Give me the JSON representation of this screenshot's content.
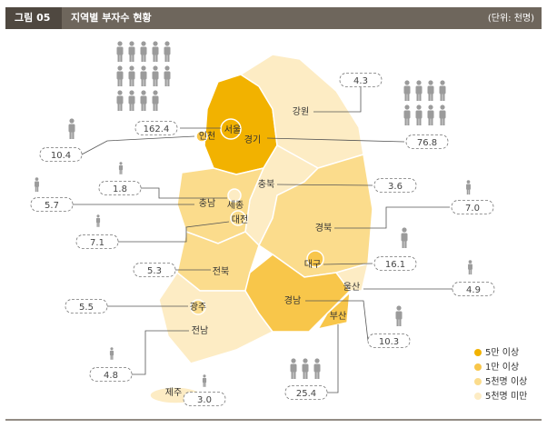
{
  "header": {
    "figure": "그림 05",
    "title": "지역별 부자수 현황",
    "unit": "(단위: 천명)"
  },
  "regions": [
    {
      "name": "서울",
      "value": "162.4",
      "color": "#f2b200"
    },
    {
      "name": "인천",
      "value": "10.4",
      "color": "#f8c64a"
    },
    {
      "name": "경기",
      "value": "76.8",
      "color": "#f2b200"
    },
    {
      "name": "강원",
      "value": "4.3",
      "color": "#fdecc4"
    },
    {
      "name": "충북",
      "value": "3.6",
      "color": "#fdecc4"
    },
    {
      "name": "충남",
      "value": "5.7",
      "color": "#fbdc8c"
    },
    {
      "name": "세종",
      "value": "1.8",
      "color": "#fdecc4"
    },
    {
      "name": "대전",
      "value": "7.1",
      "color": "#fbdc8c"
    },
    {
      "name": "경북",
      "value": "7.0",
      "color": "#fbdc8c"
    },
    {
      "name": "대구",
      "value": "16.1",
      "color": "#f8c64a"
    },
    {
      "name": "전북",
      "value": "5.3",
      "color": "#fbdc8c"
    },
    {
      "name": "광주",
      "value": "5.5",
      "color": "#fbdc8c"
    },
    {
      "name": "전남",
      "value": "4.8",
      "color": "#fdecc4"
    },
    {
      "name": "경남",
      "value": "10.3",
      "color": "#f8c64a"
    },
    {
      "name": "울산",
      "value": "4.9",
      "color": "#fdecc4"
    },
    {
      "name": "부산",
      "value": "25.4",
      "color": "#f8c64a"
    },
    {
      "name": "제주",
      "value": "3.0",
      "color": "#fdecc4"
    }
  ],
  "legend": [
    {
      "label": "5만 이상",
      "color": "#f2b200"
    },
    {
      "label": "1만 이상",
      "color": "#f8c64a"
    },
    {
      "label": "5천명 이상",
      "color": "#fbdc8c"
    },
    {
      "label": "5천명 미만",
      "color": "#fdecc4"
    }
  ]
}
